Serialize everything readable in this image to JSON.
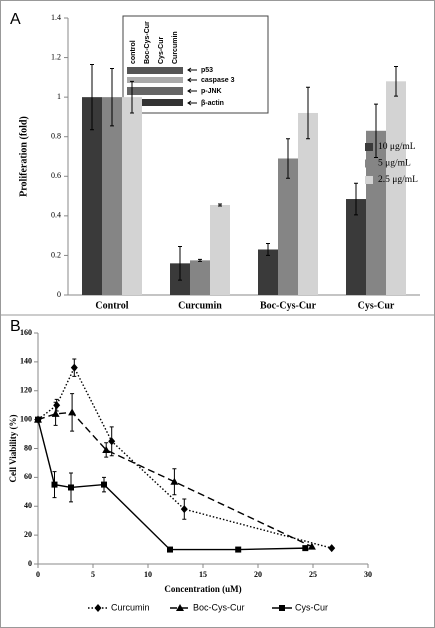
{
  "chart_data": [
    {
      "type": "bar",
      "panel": "A",
      "ylabel": "Proliferation (fold)",
      "categories": [
        "Control",
        "Curcumin",
        "Boc-Cys-Cur",
        "Cys-Cur"
      ],
      "series": [
        {
          "name": "10 μg/mL",
          "color": "#3a3a3a",
          "values": [
            1.0,
            0.16,
            0.23,
            0.485
          ],
          "errors": [
            0.165,
            0.085,
            0.03,
            0.08
          ]
        },
        {
          "name": "5 μg/mL",
          "color": "#858585",
          "values": [
            1.0,
            0.175,
            0.69,
            0.83
          ],
          "errors": [
            0.145,
            0.005,
            0.1,
            0.135
          ]
        },
        {
          "name": "2.5  μg/mL",
          "color": "#d3d3d3",
          "values": [
            1.0,
            0.455,
            0.92,
            1.08
          ],
          "errors": [
            0.08,
            0.005,
            0.13,
            0.075
          ]
        }
      ],
      "ylim": [
        0,
        1.4
      ],
      "yticks": [
        0,
        0.2,
        0.4,
        0.6,
        0.8,
        1,
        1.2,
        1.4
      ],
      "inset": {
        "lanes": [
          "control",
          "Boc-Cys-Cur",
          "Cys-Cur",
          "Curcumin"
        ],
        "bands": [
          "p53",
          "caspase 3",
          "p-JNK",
          "β-actin"
        ]
      }
    },
    {
      "type": "line",
      "panel": "B",
      "xlabel": "Concentration (uM)",
      "ylabel": "Cell Viability (%)",
      "series": [
        {
          "name": "Curcumin",
          "color": "#000000",
          "line_style": "dotted",
          "marker": "diamond",
          "x": [
            0,
            1.7,
            3.3,
            6.7,
            13.3,
            26.7
          ],
          "values": [
            100,
            110,
            136,
            85,
            38,
            11
          ],
          "errors": [
            null,
            4,
            6,
            10,
            7,
            null
          ]
        },
        {
          "name": "Boc-Cys-Cur",
          "color": "#000000",
          "line_style": "dashed",
          "marker": "triangle",
          "x": [
            0,
            1.6,
            3.1,
            6.2,
            12.4,
            24.9
          ],
          "values": [
            100,
            104,
            105,
            79,
            57,
            12
          ],
          "errors": [
            null,
            8,
            13,
            5,
            9,
            null
          ]
        },
        {
          "name": "Cys-Cur",
          "color": "#000000",
          "line_style": "solid",
          "marker": "square",
          "x": [
            0,
            1.5,
            3,
            6,
            12,
            18.2,
            24.3
          ],
          "values": [
            100,
            55,
            53,
            55,
            10,
            10,
            11
          ],
          "errors": [
            null,
            9,
            10,
            5,
            null,
            null,
            null
          ]
        }
      ],
      "xlim": [
        0,
        30
      ],
      "xticks": [
        0,
        5,
        10,
        15,
        20,
        25,
        30
      ],
      "ylim": [
        0,
        160
      ],
      "yticks": [
        0,
        20,
        40,
        60,
        80,
        100,
        120,
        140,
        160
      ]
    }
  ]
}
